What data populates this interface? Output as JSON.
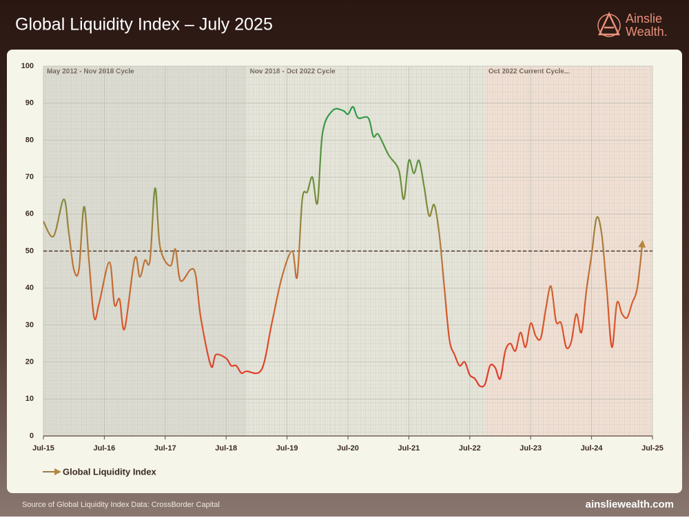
{
  "header": {
    "title": "Global Liquidity Index – July 2025",
    "logo_top": "Ainslie",
    "logo_bottom": "Wealth."
  },
  "chart_data": {
    "type": "line",
    "x": [
      "Jul-15",
      "Sep-15",
      "Nov-15",
      "Dec-15",
      "Jan-16",
      "Feb-16",
      "Mar-16",
      "Apr-16",
      "May-16",
      "Jun-16",
      "Aug-16",
      "Sep-16",
      "Oct-16",
      "Nov-16",
      "Jan-17",
      "Feb-17",
      "Mar-17",
      "Apr-17",
      "May-17",
      "Jun-17",
      "Aug-17",
      "Sep-17",
      "Oct-17",
      "Dec-17",
      "Jan-18",
      "Feb-18",
      "Apr-18",
      "May-18",
      "Jul-18",
      "Aug-18",
      "Sep-18",
      "Oct-18",
      "Nov-18",
      "Feb-19",
      "Apr-19",
      "Jun-19",
      "Aug-19",
      "Sep-19",
      "Oct-19",
      "Nov-19",
      "Dec-19",
      "Jan-20",
      "Feb-20",
      "Apr-20",
      "Jun-20",
      "Jul-20",
      "Aug-20",
      "Sep-20",
      "Nov-20",
      "Dec-20",
      "Jan-21",
      "Mar-21",
      "May-21",
      "Jun-21",
      "Jul-21",
      "Aug-21",
      "Sep-21",
      "Oct-21",
      "Nov-21",
      "Dec-21",
      "Jan-22",
      "Feb-22",
      "Mar-22",
      "Apr-22",
      "May-22",
      "Jun-22",
      "Jul-22",
      "Aug-22",
      "Sep-22",
      "Oct-22",
      "Nov-22",
      "Dec-22",
      "Jan-23",
      "Feb-23",
      "Mar-23",
      "Apr-23",
      "May-23",
      "Jun-23",
      "Jul-23",
      "Aug-23",
      "Sep-23",
      "Oct-23",
      "Nov-23",
      "Dec-23",
      "Jan-24",
      "Feb-24",
      "Mar-24",
      "Apr-24",
      "May-24",
      "Jun-24",
      "Jul-24",
      "Aug-24",
      "Sep-24",
      "Oct-24",
      "Nov-24",
      "Dec-24",
      "Jan-25",
      "Feb-25",
      "Mar-25",
      "Apr-25",
      "May-25"
    ],
    "series": [
      {
        "name": "Global Liquidity Index",
        "color": "#9a7a46",
        "values": [
          58,
          54,
          64,
          55,
          45,
          45,
          62,
          47,
          32,
          36,
          47,
          35.5,
          37,
          29,
          48,
          43,
          47.5,
          47.5,
          67,
          51,
          46,
          50.5,
          42,
          45,
          43.5,
          32,
          19,
          22,
          21,
          19,
          19,
          17,
          17.5,
          18,
          30.5,
          43,
          50,
          43,
          64,
          66,
          70,
          63,
          82,
          88,
          88,
          87,
          89,
          86,
          86,
          81,
          81.5,
          76,
          72,
          64,
          74.5,
          71,
          74.5,
          67.5,
          59.5,
          62.5,
          54.5,
          40,
          26,
          22,
          19,
          20,
          16.5,
          15.5,
          13.5,
          14,
          19,
          18.5,
          15.5,
          23,
          25,
          23,
          28,
          24,
          30.5,
          27,
          26.5,
          34.5,
          40.5,
          31,
          30.5,
          24,
          25.5,
          33,
          28,
          39.5,
          49,
          59,
          54.5,
          39.5,
          24,
          36,
          33,
          32,
          36,
          40,
          52
        ]
      }
    ],
    "xlim": [
      "Jul-15",
      "Jul-25"
    ],
    "xticks": [
      "Jul-15",
      "Jul-16",
      "Jul-17",
      "Jul-18",
      "Jul-19",
      "Jul-20",
      "Jul-21",
      "Jul-22",
      "Jul-23",
      "Jul-24",
      "Jul-25"
    ],
    "ylim": [
      0,
      100
    ],
    "yticks": [
      0,
      10,
      20,
      30,
      40,
      50,
      60,
      70,
      80,
      90,
      100
    ],
    "grid": true,
    "reference_line": 50,
    "regions": [
      {
        "label": "May 2012 - Nov 2018 Cycle",
        "end": "Nov-18",
        "color": "#dcdcd2"
      },
      {
        "label": "Nov 2018 - Oct 2022 Cycle",
        "start": "Nov-18",
        "end": "Oct-22",
        "color": "#e6e6db"
      },
      {
        "label": "Oct 2022 Current Cycle...",
        "start": "Oct-22",
        "color": "#f3e0d4"
      }
    ]
  },
  "footer": {
    "source": "Source of Global Liquidity Index Data: CrossBorder Capital",
    "site": "ainsliewealth.com"
  }
}
